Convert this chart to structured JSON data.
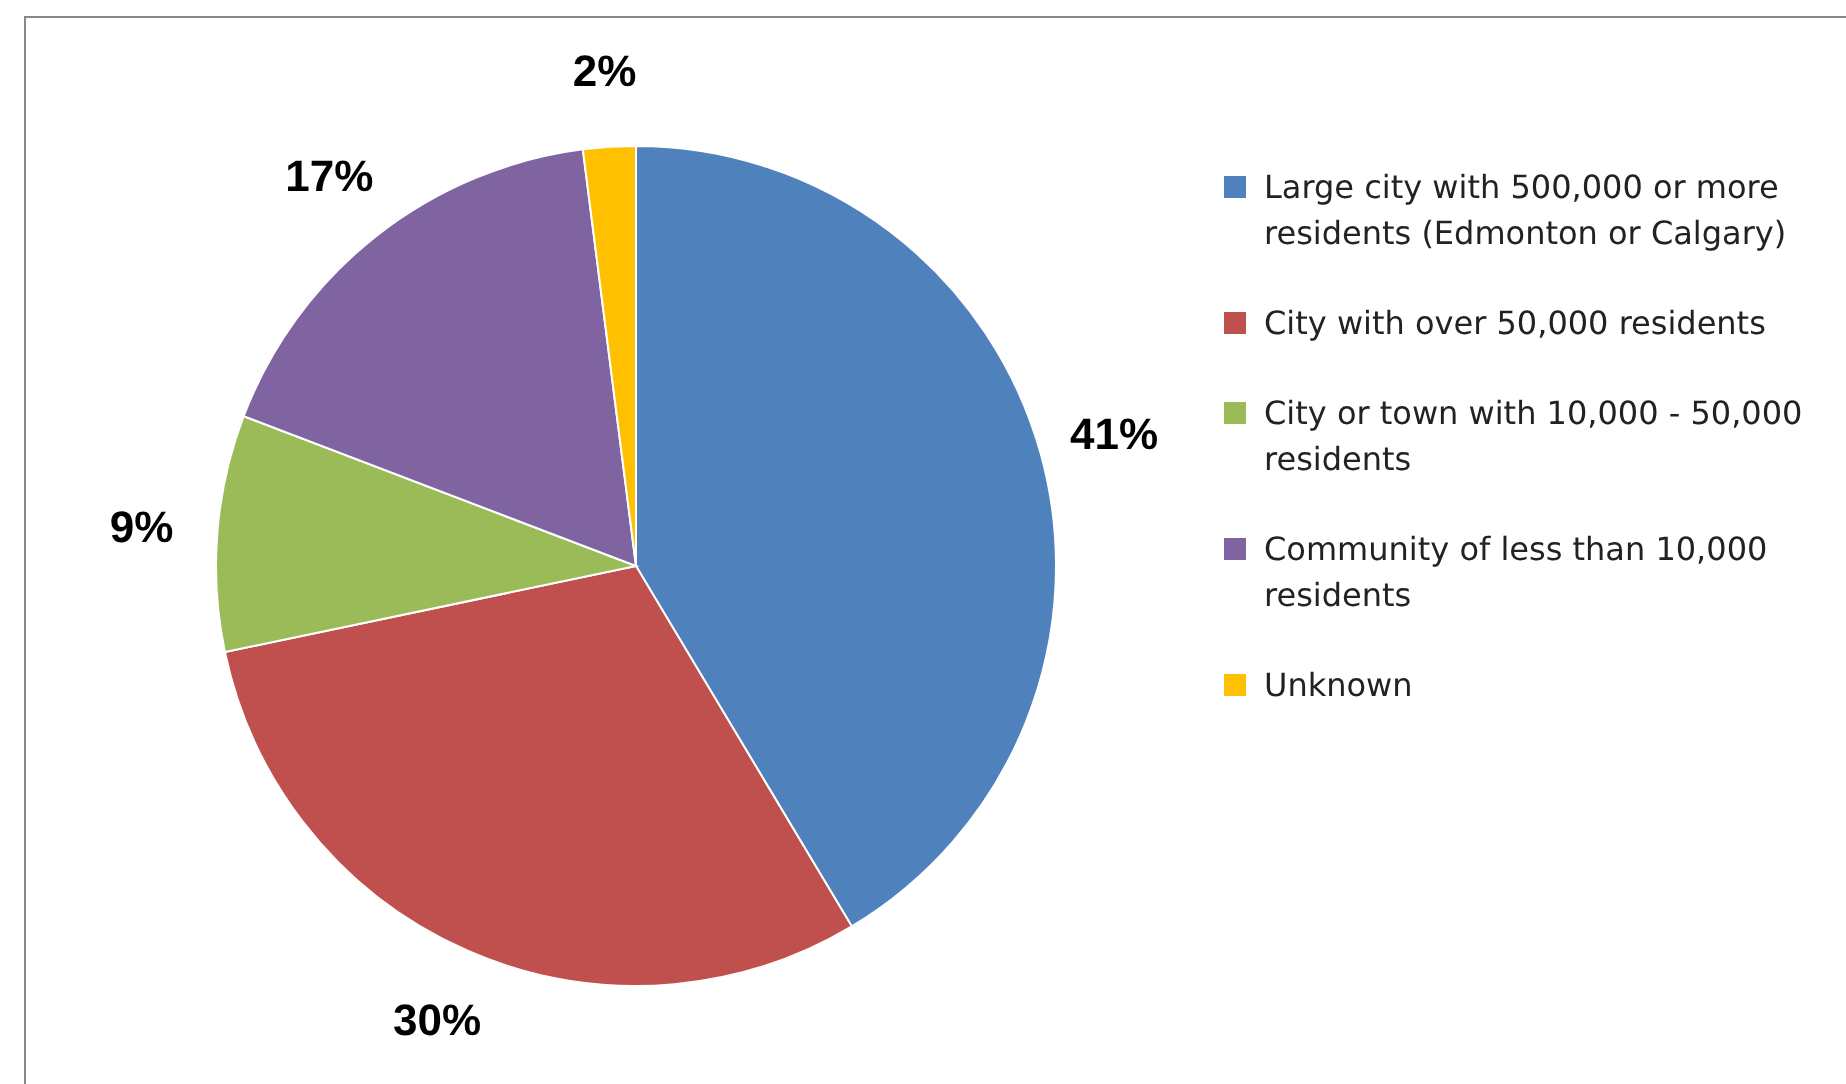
{
  "chart_data": {
    "type": "pie",
    "categories": [
      "Large city with 500,000 or more residents (Edmonton or Calgary)",
      "City with over 50,000 residents",
      "City or town with 10,000 - 50,000 residents",
      "Community of less than 10,000 residents",
      "Unknown"
    ],
    "values": [
      41,
      30,
      9,
      17,
      2
    ],
    "colors": [
      "#4f81bd",
      "#c0504d",
      "#9bbb59",
      "#8064a2",
      "#ffc000"
    ],
    "value_labels": [
      "41%",
      "30%",
      "9%",
      "17%",
      "2%"
    ],
    "legend": "right"
  }
}
